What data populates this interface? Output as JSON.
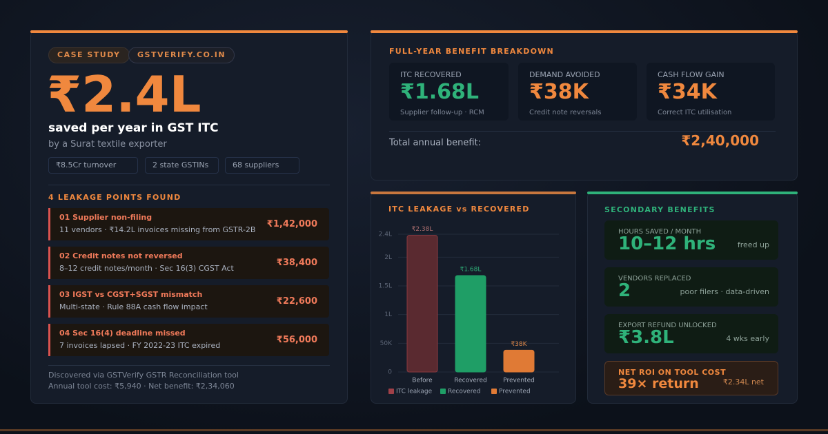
{
  "header": {
    "badges": [
      "CASE STUDY",
      "GSTVERIFY.CO.IN"
    ],
    "headline": "₹2.4L",
    "subtitle": "saved per year in GST ITC",
    "byline": "by a Surat textile exporter",
    "tags": [
      "₹8.5Cr turnover",
      "2 state GSTINs",
      "68 suppliers"
    ]
  },
  "leakage": {
    "title": "4 LEAKAGE POINTS FOUND",
    "items": [
      {
        "title": "01 Supplier non-filing",
        "detail": "11 vendors · ₹14.2L invoices missing from GSTR-2B",
        "amount": "₹1,42,000"
      },
      {
        "title": "02 Credit notes not reversed",
        "detail": "8–12 credit notes/month · Sec 16(3) CGST Act",
        "amount": "₹38,400"
      },
      {
        "title": "03 IGST vs CGST+SGST mismatch",
        "detail": "Multi-state · Rule 88A cash flow impact",
        "amount": "₹22,600"
      },
      {
        "title": "04 Sec 16(4) deadline missed",
        "detail": "7 invoices lapsed · FY 2022-23 ITC expired",
        "amount": "₹56,000"
      }
    ],
    "footer": [
      "Discovered via GSTVerify GSTR Reconciliation tool",
      "Annual tool cost: ₹5,940 · Net benefit: ₹2,34,060"
    ]
  },
  "breakdown": {
    "title": "FULL-YEAR BENEFIT BREAKDOWN",
    "cards": [
      {
        "label": "ITC RECOVERED",
        "value": "₹1.68L",
        "note": "Supplier follow-up · RCM"
      },
      {
        "label": "DEMAND AVOIDED",
        "value": "₹38K",
        "note": "Credit note reversals"
      },
      {
        "label": "CASH FLOW GAIN",
        "value": "₹34K",
        "note": "Correct ITC utilisation"
      }
    ],
    "total_label": "Total annual benefit:",
    "total_value": "₹2,40,000"
  },
  "chart_data": {
    "type": "bar",
    "title": "ITC LEAKAGE vs RECOVERED",
    "categories": [
      "Before",
      "Recovered",
      "Prevented"
    ],
    "values": [
      2.38,
      1.68,
      0.38
    ],
    "value_labels": [
      "₹2.38L",
      "₹1.68L",
      "₹38K"
    ],
    "colors": [
      "#5a2a30",
      "#1f9e66",
      "#e07a35"
    ],
    "legend": [
      "ITC leakage",
      "Recovered",
      "Prevented"
    ],
    "ylim": [
      0,
      2.4
    ],
    "yticks": [
      0,
      {
        "value": 0.5,
        "label": "50K"
      },
      {
        "value": 1,
        "label": "1L"
      },
      {
        "value": 1.5,
        "label": "1.5L"
      },
      {
        "value": 2,
        "label": "2L"
      },
      {
        "value": 2.4,
        "label": "2.4L"
      }
    ],
    "grid": true
  },
  "secondary": {
    "title": "SECONDARY BENEFITS",
    "items": [
      {
        "label": "HOURS SAVED / MONTH",
        "value": "10–12 hrs",
        "note": "freed up"
      },
      {
        "label": "VENDORS REPLACED",
        "value": "2",
        "note": "poor filers · data-driven"
      },
      {
        "label": "EXPORT REFUND UNLOCKED",
        "value": "₹3.8L",
        "note": "4 wks early"
      }
    ],
    "roi": {
      "label": "NET ROI ON TOOL COST",
      "value": "39× return",
      "note": "₹2.34L net"
    }
  }
}
